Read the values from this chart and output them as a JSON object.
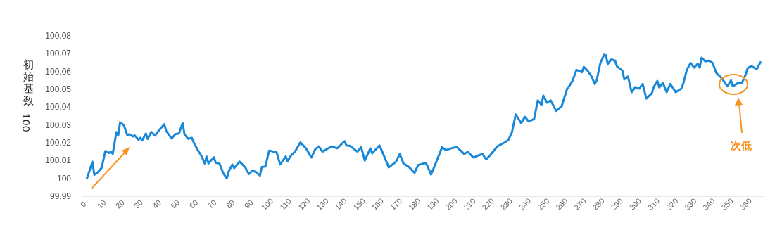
{
  "chart_data": {
    "type": "line",
    "ylabel": "初始基数100",
    "x": [
      1,
      4,
      5,
      7,
      9,
      11,
      13,
      14,
      15,
      17,
      18,
      19,
      21,
      23,
      24,
      26,
      27,
      29,
      30,
      31,
      33,
      34,
      36,
      38,
      40,
      43,
      44,
      47,
      49,
      51,
      53,
      54,
      56,
      58,
      59,
      61,
      63,
      65,
      66,
      67,
      70,
      71,
      73,
      75,
      77,
      78,
      80,
      81,
      84,
      87,
      89,
      91,
      93,
      95,
      96,
      98,
      100,
      104,
      106,
      109,
      110,
      112,
      114,
      117,
      120,
      123,
      125,
      127,
      129,
      134,
      137,
      141,
      142,
      144,
      148,
      150,
      152,
      155,
      156,
      160,
      162,
      165,
      169,
      171,
      173,
      176,
      179,
      181,
      185,
      186,
      188,
      191,
      194,
      196,
      199,
      202,
      206,
      208,
      211,
      214,
      216,
      218,
      221,
      224,
      228,
      230,
      232,
      234,
      237,
      239,
      241,
      244,
      246,
      248,
      249,
      251,
      253,
      256,
      259,
      262,
      263,
      265,
      267,
      270,
      271,
      273,
      275,
      277,
      278,
      280,
      282,
      283,
      284,
      286,
      288,
      289,
      292,
      293,
      295,
      297,
      299,
      301,
      303,
      305,
      308,
      309,
      311,
      312,
      314,
      316,
      318,
      321,
      324,
      325,
      327,
      329,
      331,
      333,
      334,
      335,
      337,
      339,
      341,
      343,
      346,
      349,
      351,
      352,
      355,
      357,
      359,
      360,
      362,
      365,
      367
    ],
    "series": [
      {
        "color": "#1a88d8",
        "values": [
          100.0,
          100.0094,
          100.002,
          100.0035,
          100.006,
          100.0154,
          100.0143,
          100.015,
          100.0138,
          100.026,
          100.0241,
          100.0315,
          100.03,
          100.0241,
          100.0248,
          100.0236,
          100.0241,
          100.0217,
          100.0228,
          100.0213,
          100.0252,
          100.0222,
          100.0261,
          100.0241,
          100.0268,
          100.0304,
          100.0268,
          100.0224,
          100.0248,
          100.0252,
          100.0311,
          100.0248,
          100.0222,
          100.0228,
          100.0202,
          100.0163,
          100.013,
          100.0084,
          100.0123,
          100.0084,
          100.0119,
          100.0087,
          100.0084,
          100.0031,
          100.0,
          100.0038,
          100.0078,
          100.0058,
          100.0094,
          100.0062,
          100.0025,
          100.0044,
          100.0035,
          100.0016,
          100.0064,
          100.0067,
          100.0156,
          100.0147,
          100.0078,
          100.0123,
          100.0097,
          100.013,
          100.015,
          100.0202,
          100.0169,
          100.0117,
          100.0163,
          100.018,
          100.015,
          100.018,
          100.0169,
          100.0209,
          100.0185,
          100.0182,
          100.015,
          100.0176,
          100.01,
          100.0169,
          100.0141,
          100.0185,
          100.0137,
          100.0062,
          100.0094,
          100.0137,
          100.0084,
          100.0064,
          100.0031,
          100.0075,
          100.0087,
          100.0071,
          100.0022,
          100.0097,
          100.0176,
          100.0159,
          100.0169,
          100.0176,
          100.0137,
          100.015,
          100.0117,
          100.013,
          100.0137,
          100.0106,
          100.0141,
          100.018,
          100.0202,
          100.0215,
          100.0261,
          100.0359,
          100.031,
          100.0346,
          100.032,
          100.0333,
          100.0438,
          100.0412,
          100.0465,
          100.0425,
          100.0438,
          100.0379,
          100.0406,
          100.0504,
          100.0517,
          100.055,
          100.0609,
          100.0596,
          100.0626,
          100.0605,
          100.0576,
          100.053,
          100.055,
          100.0648,
          100.0694,
          100.0692,
          100.0642,
          100.0668,
          100.0661,
          100.0629,
          100.0605,
          100.0556,
          100.0572,
          100.0484,
          100.0513,
          100.0504,
          100.053,
          100.0448,
          100.0478,
          100.0513,
          100.0547,
          100.0511,
          100.0537,
          100.0484,
          100.053,
          100.0484,
          100.0504,
          100.053,
          100.0609,
          100.0648,
          100.0622,
          100.0644,
          100.0622,
          100.0678,
          100.0657,
          100.0661,
          100.0648,
          100.0592,
          100.0563,
          100.0517,
          100.055,
          100.0517,
          100.0537,
          100.0537,
          100.0583,
          100.0618,
          100.0631,
          100.0613,
          100.0652
        ]
      }
    ],
    "xlim": [
      -1.5,
      369
    ],
    "xticks": [
      0,
      10,
      20,
      30,
      40,
      50,
      60,
      70,
      80,
      90,
      100,
      110,
      120,
      130,
      140,
      150,
      160,
      170,
      180,
      190,
      200,
      210,
      220,
      230,
      240,
      250,
      260,
      270,
      280,
      290,
      300,
      310,
      320,
      330,
      340,
      350,
      360
    ],
    "ylim": [
      99.99,
      100.08
    ],
    "yticks": [
      99.99,
      100,
      100.01,
      100.02,
      100.03,
      100.04,
      100.05,
      100.06,
      100.07,
      100.08
    ],
    "annotations": [
      "次低"
    ]
  }
}
